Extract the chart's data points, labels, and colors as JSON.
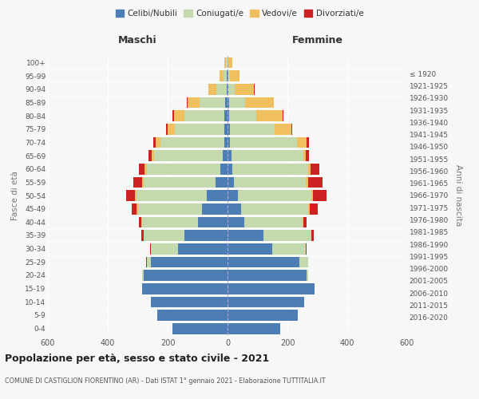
{
  "age_groups": [
    "0-4",
    "5-9",
    "10-14",
    "15-19",
    "20-24",
    "25-29",
    "30-34",
    "35-39",
    "40-44",
    "45-49",
    "50-54",
    "55-59",
    "60-64",
    "65-69",
    "70-74",
    "75-79",
    "80-84",
    "85-89",
    "90-94",
    "95-99",
    "100+"
  ],
  "birth_years": [
    "2016-2020",
    "2011-2015",
    "2006-2010",
    "2001-2005",
    "1996-2000",
    "1991-1995",
    "1986-1990",
    "1981-1985",
    "1976-1980",
    "1971-1975",
    "1966-1970",
    "1961-1965",
    "1956-1960",
    "1951-1955",
    "1946-1950",
    "1941-1945",
    "1936-1940",
    "1931-1935",
    "1926-1930",
    "1921-1925",
    "≤ 1920"
  ],
  "males": {
    "celibi": [
      185,
      235,
      255,
      285,
      280,
      255,
      165,
      145,
      100,
      85,
      70,
      40,
      25,
      15,
      10,
      10,
      10,
      8,
      3,
      2,
      1
    ],
    "coniugati": [
      0,
      0,
      0,
      0,
      5,
      15,
      90,
      135,
      185,
      215,
      235,
      240,
      245,
      230,
      215,
      165,
      135,
      85,
      35,
      12,
      4
    ],
    "vedovi": [
      0,
      0,
      0,
      0,
      0,
      0,
      1,
      1,
      2,
      3,
      4,
      6,
      8,
      8,
      15,
      25,
      35,
      40,
      25,
      12,
      5
    ],
    "divorziati": [
      0,
      0,
      0,
      0,
      0,
      1,
      4,
      7,
      9,
      18,
      30,
      28,
      18,
      12,
      8,
      6,
      4,
      2,
      1,
      0,
      0
    ]
  },
  "females": {
    "nubili": [
      175,
      235,
      255,
      290,
      265,
      240,
      150,
      120,
      55,
      45,
      35,
      20,
      15,
      12,
      8,
      8,
      5,
      4,
      2,
      2,
      1
    ],
    "coniugate": [
      0,
      0,
      0,
      0,
      5,
      28,
      110,
      160,
      195,
      225,
      245,
      240,
      255,
      240,
      225,
      150,
      90,
      55,
      22,
      7,
      2
    ],
    "vedove": [
      0,
      0,
      0,
      0,
      0,
      0,
      1,
      1,
      2,
      4,
      6,
      8,
      8,
      8,
      30,
      55,
      90,
      95,
      65,
      32,
      13
    ],
    "divorziate": [
      0,
      0,
      0,
      0,
      0,
      2,
      4,
      7,
      13,
      28,
      45,
      48,
      28,
      13,
      8,
      4,
      2,
      1,
      1,
      0,
      0
    ]
  },
  "color_celibi": "#4d7db5",
  "color_coniugati": "#c5d9ae",
  "color_vedovi": "#f0c060",
  "color_divorziati": "#cc2222",
  "background_color": "#f7f7f7",
  "grid_color": "#ffffff",
  "xlim": 600,
  "title": "Popolazione per età, sesso e stato civile - 2021",
  "subtitle": "COMUNE DI CASTIGLION FIORENTINO (AR) - Dati ISTAT 1° gennaio 2021 - Elaborazione TUTTITALIA.IT"
}
